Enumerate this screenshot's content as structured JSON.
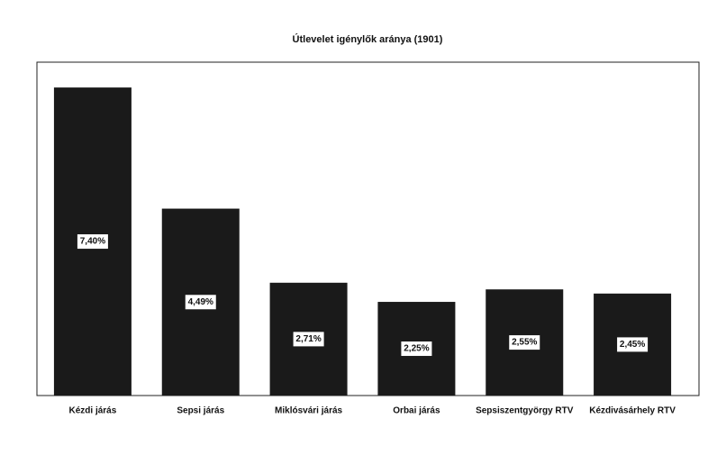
{
  "chart_data": {
    "type": "bar",
    "title": "Útlevelet igénylők aránya (1901)",
    "categories": [
      "Kézdi járás",
      "Sepsi járás",
      "Miklósvári járás",
      "Orbai járás",
      "Sepsiszentgyörgy RTV",
      "Kézdivásárhely RTV"
    ],
    "values": [
      7.4,
      4.49,
      2.71,
      2.25,
      2.55,
      2.45
    ],
    "value_labels": [
      "7,40%",
      "4,49%",
      "2,71%",
      "2,25%",
      "2,55%",
      "2,45%"
    ],
    "color": "#1a1a1a"
  }
}
